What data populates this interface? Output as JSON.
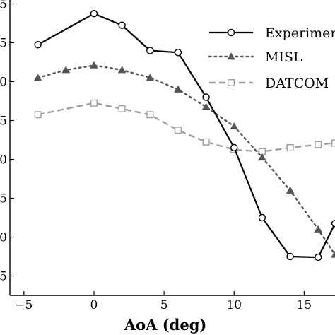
{
  "chart_data": {
    "type": "line",
    "xlabel": "AoA (deg)",
    "ylabel": "",
    "xlim": [
      -6,
      17.2
    ],
    "ylim": [
      0.5,
      8.1
    ],
    "x_ticks": [
      -5,
      0,
      5,
      10,
      15
    ],
    "x_tick_labels": [
      "−5",
      "0",
      "5",
      "10",
      "15"
    ],
    "y_ticks": [
      1,
      2,
      3,
      4,
      5,
      6,
      7,
      8
    ],
    "y_tick_labels": [
      "5",
      "0",
      "5",
      "0",
      "5",
      "0",
      "5",
      "5"
    ],
    "legend": "top-right",
    "grid": false,
    "series": [
      {
        "name": "Experiment",
        "marker": "circle",
        "style": "solid",
        "color": "#000000",
        "x": [
          -4,
          0,
          2,
          4,
          6,
          8,
          10,
          12,
          14,
          16,
          17.2
        ],
        "y": [
          6.95,
          7.75,
          7.45,
          6.8,
          6.75,
          5.6,
          4.3,
          2.5,
          1.5,
          1.48,
          2.35
        ]
      },
      {
        "name": "MISL",
        "marker": "triangle",
        "style": "dotted",
        "color": "#555555",
        "x": [
          -4,
          -2,
          0,
          2,
          4,
          6,
          8,
          10,
          12,
          14,
          16,
          17.2
        ],
        "y": [
          6.1,
          6.3,
          6.42,
          6.3,
          6.1,
          5.8,
          5.35,
          4.85,
          4.05,
          3.2,
          2.2,
          1.55
        ]
      },
      {
        "name": "DATCOM",
        "marker": "square",
        "style": "dashed",
        "color": "#a0a0a0",
        "x": [
          -4,
          0,
          2,
          4,
          6,
          8,
          10,
          12,
          14,
          16,
          17.2
        ],
        "y": [
          5.15,
          5.45,
          5.3,
          5.15,
          4.75,
          4.45,
          4.25,
          4.2,
          4.3,
          4.38,
          4.42
        ]
      }
    ]
  }
}
